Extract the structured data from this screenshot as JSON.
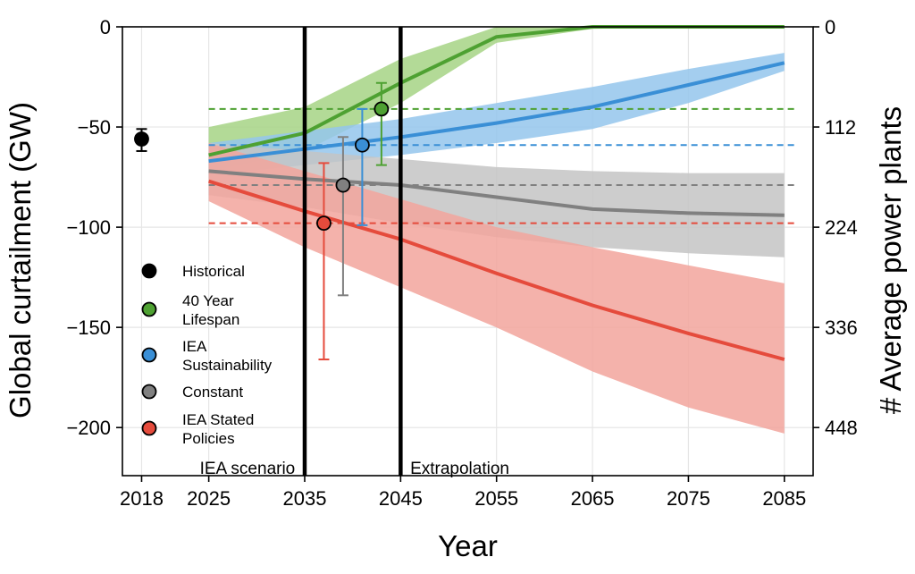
{
  "chart_data": {
    "type": "line",
    "xlabel": "Year",
    "ylabel": "Global curtailment (GW)",
    "y2label": "# Average power plants",
    "xlim": [
      2016,
      2088
    ],
    "ylim": [
      -224,
      0
    ],
    "x_ticks": [
      {
        "value": 2018,
        "label": "2018"
      },
      {
        "value": 2025,
        "label": "2025"
      },
      {
        "value": 2035,
        "label": "2035"
      },
      {
        "value": 2045,
        "label": "2045"
      },
      {
        "value": 2055,
        "label": "2055"
      },
      {
        "value": 2065,
        "label": "2065"
      },
      {
        "value": 2075,
        "label": "2075"
      },
      {
        "value": 2085,
        "label": "2085"
      }
    ],
    "y_ticks": [
      {
        "value": 0,
        "label": "0"
      },
      {
        "value": -50,
        "label": "−50"
      },
      {
        "value": -100,
        "label": "−100"
      },
      {
        "value": -150,
        "label": "−150"
      },
      {
        "value": -200,
        "label": "−200"
      }
    ],
    "y2_ticks": [
      {
        "value": 0,
        "label": "0"
      },
      {
        "value": -50,
        "label": "112"
      },
      {
        "value": -100,
        "label": "224"
      },
      {
        "value": -150,
        "label": "336"
      },
      {
        "value": -200,
        "label": "448"
      }
    ],
    "grid": true,
    "legend_position": "left",
    "vlines": [
      2035,
      2045
    ],
    "annotations": [
      {
        "text": "IEA scenario",
        "x": 2034,
        "y": -220,
        "align": "end"
      },
      {
        "text": "Extrapolation",
        "x": 2046,
        "y": -220,
        "align": "start"
      }
    ],
    "series": [
      {
        "name": "40 Year Lifespan",
        "color": "#4ea132",
        "band_color": "#a6d385",
        "x": [
          2025,
          2035,
          2045,
          2055,
          2065,
          2075,
          2085
        ],
        "values": [
          -64,
          -53,
          -28,
          -5,
          0,
          0,
          0
        ],
        "upper": [
          -50,
          -40,
          -16,
          0,
          0,
          0,
          0
        ],
        "lower": [
          -72,
          -62,
          -38,
          -8,
          -1,
          0,
          0
        ],
        "hline": -41,
        "point": {
          "x": 2043,
          "y": -41,
          "err_low": -69,
          "err_high": -28
        }
      },
      {
        "name": "IEA Sustainability",
        "color": "#3a8fd6",
        "band_color": "#94c5ec",
        "x": [
          2025,
          2035,
          2045,
          2055,
          2065,
          2075,
          2085
        ],
        "values": [
          -67,
          -61,
          -55,
          -48,
          -40,
          -29,
          -18
        ],
        "upper": [
          -58,
          -52,
          -46,
          -38,
          -30,
          -21,
          -13
        ],
        "lower": [
          -74,
          -69,
          -64,
          -58,
          -51,
          -38,
          -22
        ],
        "hline": -59,
        "point": {
          "x": 2041,
          "y": -59,
          "err_low": -99,
          "err_high": -41
        }
      },
      {
        "name": "Constant",
        "color": "#808080",
        "band_color": "#c4c4c4",
        "x": [
          2025,
          2035,
          2045,
          2055,
          2065,
          2075,
          2085
        ],
        "values": [
          -72,
          -76,
          -79,
          -85,
          -91,
          -93,
          -94
        ],
        "upper": [
          -58,
          -62,
          -66,
          -70,
          -72,
          -73,
          -73
        ],
        "lower": [
          -84,
          -90,
          -98,
          -105,
          -110,
          -113,
          -115
        ],
        "hline": -79,
        "point": {
          "x": 2039,
          "y": -79,
          "err_low": -134,
          "err_high": -55
        }
      },
      {
        "name": "IEA Stated Policies",
        "color": "#e54b3c",
        "band_color": "#f2a49c",
        "x": [
          2025,
          2035,
          2045,
          2055,
          2065,
          2075,
          2085
        ],
        "values": [
          -77,
          -92,
          -106,
          -123,
          -139,
          -153,
          -166
        ],
        "upper": [
          -58,
          -72,
          -86,
          -100,
          -110,
          -119,
          -128
        ],
        "lower": [
          -87,
          -110,
          -130,
          -150,
          -172,
          -190,
          -203
        ],
        "hline": -98,
        "point": {
          "x": 2037,
          "y": -98,
          "err_low": -166,
          "err_high": -68
        }
      }
    ],
    "historical": {
      "name": "Historical",
      "x": 2018,
      "y": -56,
      "err_low": -62,
      "err_high": -51,
      "color": "#000000"
    },
    "legend": [
      {
        "lines": [
          "Historical"
        ],
        "color": "#000000"
      },
      {
        "lines": [
          "40 Year",
          "Lifespan"
        ],
        "color": "#4ea132"
      },
      {
        "lines": [
          "IEA",
          "Sustainability"
        ],
        "color": "#3a8fd6"
      },
      {
        "lines": [
          "Constant"
        ],
        "color": "#808080"
      },
      {
        "lines": [
          "IEA Stated",
          "Policies"
        ],
        "color": "#e54b3c"
      }
    ]
  }
}
